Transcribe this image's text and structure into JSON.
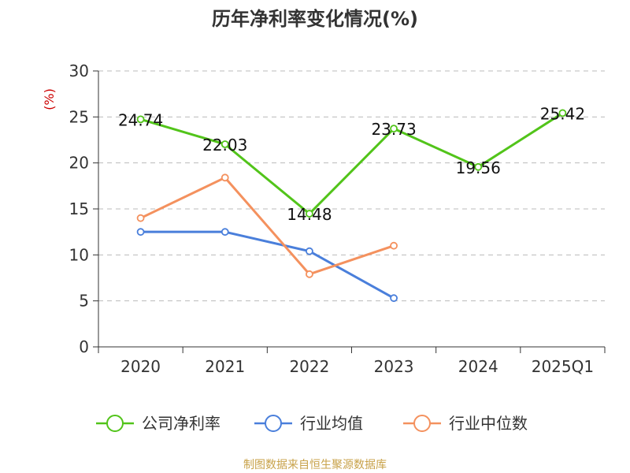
{
  "chart_data": {
    "type": "line",
    "title": "历年净利率变化情况(%)",
    "ylabel": "(%)",
    "xlabel": "",
    "categories": [
      "2020",
      "2021",
      "2022",
      "2023",
      "2024",
      "2025Q1"
    ],
    "ylim": [
      0,
      30
    ],
    "yticks": [
      0,
      5,
      10,
      15,
      20,
      25,
      30
    ],
    "grid": true,
    "legend_position": "bottom",
    "series": [
      {
        "name": "公司净利率",
        "color": "#52c41a",
        "values": [
          24.74,
          22.03,
          14.48,
          23.73,
          19.56,
          25.42
        ],
        "labels": [
          "24.74",
          "22.03",
          "14.48",
          "23.73",
          "19.56",
          "25.42"
        ]
      },
      {
        "name": "行业均值",
        "color": "#4a7fdb",
        "values": [
          12.5,
          12.5,
          10.4,
          5.3,
          null,
          null
        ]
      },
      {
        "name": "行业中位数",
        "color": "#f4915e",
        "values": [
          14.0,
          18.4,
          7.9,
          11.0,
          null,
          null
        ]
      }
    ]
  },
  "source": {
    "text": "制图数据来自恒生聚源数据库",
    "color": "#c8a24a"
  },
  "colors": {
    "ylabel": "#cc0000",
    "axis": "#333333",
    "grid": "#bbbbbb"
  }
}
